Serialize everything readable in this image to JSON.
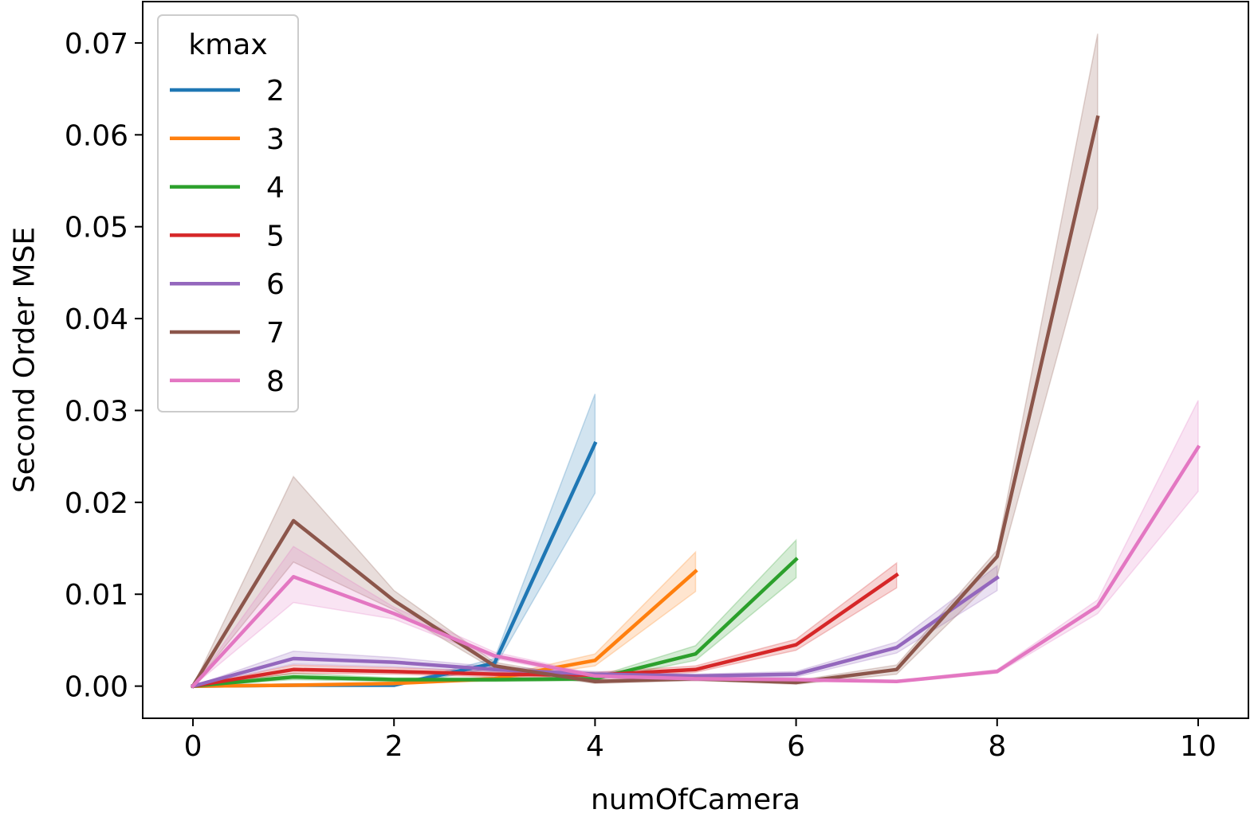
{
  "chart_data": {
    "type": "line",
    "xlabel": "numOfCamera",
    "ylabel": "Second Order MSE",
    "xlim": [
      -0.5,
      10.5
    ],
    "ylim": [
      -0.0035,
      0.0745
    ],
    "xticks": [
      0,
      2,
      4,
      6,
      8,
      10
    ],
    "xtick_labels": [
      "0",
      "2",
      "4",
      "6",
      "8",
      "10"
    ],
    "yticks": [
      0.0,
      0.01,
      0.02,
      0.03,
      0.04,
      0.05,
      0.06,
      0.07
    ],
    "ytick_labels": [
      "0.00",
      "0.01",
      "0.02",
      "0.03",
      "0.04",
      "0.05",
      "0.06",
      "0.07"
    ],
    "grid": false,
    "legend": {
      "title": "kmax",
      "placement": "top-left"
    },
    "series": [
      {
        "name": "2",
        "color": "#1f77b4",
        "x": [
          0,
          1,
          2,
          3,
          4
        ],
        "y": [
          0.0,
          0.0001,
          0.0001,
          0.0025,
          0.0264
        ],
        "lower": [
          0.0,
          0.0,
          0.0,
          0.002,
          0.021
        ],
        "upper": [
          0.0,
          0.0002,
          0.0002,
          0.003,
          0.0318
        ]
      },
      {
        "name": "3",
        "color": "#ff7f0e",
        "x": [
          0,
          1,
          2,
          3,
          4,
          5
        ],
        "y": [
          0.0,
          0.0001,
          0.0003,
          0.0008,
          0.0028,
          0.0125
        ],
        "lower": [
          0.0,
          0.0,
          0.0002,
          0.0006,
          0.0022,
          0.0103
        ],
        "upper": [
          0.0,
          0.0002,
          0.0004,
          0.001,
          0.0035,
          0.0146
        ]
      },
      {
        "name": "4",
        "color": "#2ca02c",
        "x": [
          0,
          1,
          2,
          3,
          4,
          5,
          6
        ],
        "y": [
          0.0,
          0.001,
          0.0007,
          0.0007,
          0.0008,
          0.0035,
          0.0138
        ],
        "lower": [
          0.0,
          0.0007,
          0.0005,
          0.0005,
          0.0006,
          0.0028,
          0.0118
        ],
        "upper": [
          0.0,
          0.0014,
          0.0009,
          0.0009,
          0.001,
          0.0044,
          0.0159
        ]
      },
      {
        "name": "5",
        "color": "#d62728",
        "x": [
          0,
          1,
          2,
          3,
          4,
          5,
          6,
          7
        ],
        "y": [
          0.0,
          0.0018,
          0.0016,
          0.0013,
          0.0012,
          0.0018,
          0.0045,
          0.0121
        ],
        "lower": [
          0.0,
          0.0014,
          0.0013,
          0.001,
          0.001,
          0.0015,
          0.0039,
          0.0107
        ],
        "upper": [
          0.0,
          0.0023,
          0.002,
          0.0016,
          0.0015,
          0.0022,
          0.0051,
          0.0134
        ]
      },
      {
        "name": "6",
        "color": "#9467bd",
        "x": [
          0,
          1,
          2,
          3,
          4,
          5,
          6,
          7,
          8
        ],
        "y": [
          0.0,
          0.003,
          0.0026,
          0.0018,
          0.0013,
          0.0011,
          0.0013,
          0.0042,
          0.0118
        ],
        "lower": [
          0.0,
          0.0024,
          0.0021,
          0.0015,
          0.001,
          0.0009,
          0.001,
          0.0036,
          0.0104
        ],
        "upper": [
          0.0,
          0.0038,
          0.0031,
          0.0021,
          0.0016,
          0.0013,
          0.0016,
          0.0048,
          0.0131
        ]
      },
      {
        "name": "7",
        "color": "#8c564b",
        "x": [
          0,
          1,
          2,
          3,
          4,
          5,
          6,
          7,
          8,
          9
        ],
        "y": [
          0.0,
          0.018,
          0.0093,
          0.0022,
          0.0005,
          0.0008,
          0.0004,
          0.0018,
          0.0141,
          0.0619
        ],
        "lower": [
          0.0,
          0.0135,
          0.0083,
          0.0018,
          0.0003,
          0.0006,
          0.0002,
          0.0013,
          0.012,
          0.052
        ],
        "upper": [
          0.0,
          0.0228,
          0.0104,
          0.0026,
          0.0007,
          0.001,
          0.0006,
          0.0023,
          0.0148,
          0.071
        ]
      },
      {
        "name": "8",
        "color": "#e377c2",
        "x": [
          0,
          1,
          2,
          3,
          4,
          5,
          6,
          7,
          8,
          9,
          10
        ],
        "y": [
          0.0,
          0.0119,
          0.0079,
          0.0033,
          0.0011,
          0.0008,
          0.0007,
          0.0005,
          0.0016,
          0.0087,
          0.026
        ],
        "lower": [
          0.0,
          0.0091,
          0.0073,
          0.003,
          0.0009,
          0.0006,
          0.0005,
          0.0004,
          0.0014,
          0.0079,
          0.0212
        ],
        "upper": [
          0.0,
          0.0152,
          0.0086,
          0.0037,
          0.0013,
          0.001,
          0.0009,
          0.0006,
          0.0018,
          0.0094,
          0.0311
        ]
      }
    ]
  }
}
